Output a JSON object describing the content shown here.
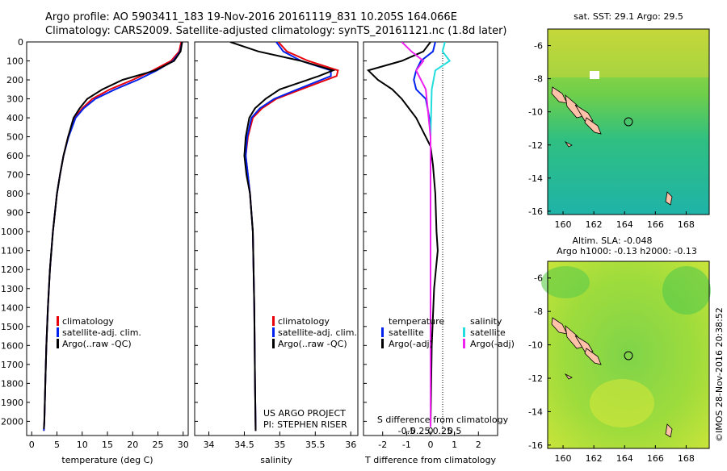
{
  "header": {
    "title_line1": "Argo profile: AO 5903411_183 19-Nov-2016 20161119_831 10.205S 164.066E",
    "title_line2": "Climatology: CARS2009. Satellite-adjusted climatology: synTS_20161121.nc (1.8d later)"
  },
  "colors": {
    "climatology": "#e8000b",
    "satellite_adj": "#0022ee",
    "argo": "#000000",
    "satellite_salinity": "#22dddd",
    "argo_salinity_adj": "#ee22ee"
  },
  "chart_data": [
    {
      "type": "line",
      "panel": "temperature",
      "xlabel": "temperature (deg C)",
      "ylim": [
        2050,
        0
      ],
      "xlim": [
        -1,
        31
      ],
      "xticks": [
        0,
        5,
        10,
        15,
        20,
        25,
        30
      ],
      "yticks": [
        0,
        100,
        200,
        300,
        400,
        500,
        600,
        700,
        800,
        900,
        1000,
        1100,
        1200,
        1300,
        1400,
        1500,
        1600,
        1700,
        1800,
        1900,
        2000
      ],
      "legend": [
        "climatology",
        "satellite-adj. clim.",
        "Argo(..raw -QC)"
      ],
      "series": [
        {
          "name": "climatology",
          "x": [
            29.6,
            29.2,
            27.6,
            24,
            20,
            15.5,
            12,
            10,
            8.5,
            7.2,
            6.3,
            5.6,
            5,
            4.2,
            3.6,
            3.2,
            2.9,
            2.7,
            2.5,
            2.4
          ],
          "y": [
            0,
            50,
            100,
            150,
            200,
            250,
            300,
            350,
            400,
            500,
            600,
            700,
            800,
            1000,
            1200,
            1400,
            1600,
            1800,
            2000,
            2050
          ]
        },
        {
          "name": "satellite-adj. clim.",
          "x": [
            29.8,
            29.4,
            28,
            24.8,
            21,
            16.5,
            12.6,
            10.3,
            8.7,
            7.3,
            6.3,
            5.6,
            5,
            4.2,
            3.6,
            3.2,
            2.9,
            2.7,
            2.5,
            2.4
          ],
          "y": [
            0,
            50,
            100,
            150,
            200,
            250,
            300,
            350,
            400,
            500,
            600,
            700,
            800,
            1000,
            1200,
            1400,
            1600,
            1800,
            2000,
            2050
          ]
        },
        {
          "name": "Argo(..raw -QC)",
          "x": [
            29.8,
            29.5,
            28.2,
            24.5,
            18,
            14,
            11,
            9.5,
            8.3,
            7.2,
            6.3,
            5.6,
            5,
            4.2,
            3.6,
            3.2,
            2.9,
            2.7,
            2.5,
            2.4
          ],
          "y": [
            0,
            50,
            100,
            150,
            200,
            250,
            300,
            350,
            400,
            500,
            600,
            700,
            800,
            1000,
            1200,
            1400,
            1600,
            1800,
            2000,
            2040
          ]
        }
      ]
    },
    {
      "type": "line",
      "panel": "salinity",
      "xlabel": "salinity",
      "ylim": [
        2050,
        0
      ],
      "xlim": [
        33.8,
        36.1
      ],
      "xticks": [
        34,
        34.5,
        35,
        35.5,
        36
      ],
      "legend": [
        "climatology",
        "satellite-adj. clim.",
        "Argo(..raw -QC)"
      ],
      "annotation": [
        "US ARGO PROJECT",
        "PI: STEPHEN RISER"
      ],
      "series": [
        {
          "name": "climatology",
          "x": [
            34.98,
            35.1,
            35.4,
            35.82,
            35.8,
            35.3,
            34.95,
            34.75,
            34.62,
            34.55,
            34.52,
            34.55,
            34.58,
            34.62,
            34.64,
            34.65,
            34.66
          ],
          "y": [
            0,
            50,
            100,
            150,
            180,
            250,
            300,
            350,
            400,
            500,
            600,
            700,
            800,
            1000,
            1400,
            1800,
            2050
          ]
        },
        {
          "name": "satellite-adj. clim.",
          "x": [
            34.95,
            35.05,
            35.3,
            35.72,
            35.72,
            35.25,
            34.92,
            34.72,
            34.6,
            34.54,
            34.52,
            34.55,
            34.58,
            34.62,
            34.64,
            34.65,
            34.66
          ],
          "y": [
            0,
            50,
            100,
            150,
            180,
            250,
            300,
            350,
            400,
            500,
            600,
            700,
            800,
            1000,
            1400,
            1800,
            2050
          ]
        },
        {
          "name": "Argo(..raw -QC)",
          "x": [
            34.3,
            34.7,
            35.3,
            35.75,
            35.55,
            35.0,
            34.8,
            34.65,
            34.57,
            34.52,
            34.5,
            34.53,
            34.58,
            34.62,
            34.64,
            34.65,
            34.66
          ],
          "y": [
            0,
            50,
            100,
            150,
            180,
            250,
            300,
            350,
            400,
            500,
            600,
            700,
            800,
            1000,
            1400,
            1800,
            2050
          ]
        }
      ]
    },
    {
      "type": "line",
      "panel": "difference",
      "xlabel": "T difference from climatology",
      "x2label": "S difference from climatology",
      "ylim": [
        2050,
        0
      ],
      "xlim": [
        -2.8,
        2.8
      ],
      "xticks": [
        -2,
        -1,
        0,
        1,
        2
      ],
      "x2ticks": [
        "-0.5",
        "-0.25",
        "0",
        "0.25",
        "0.5"
      ],
      "legend": [
        "temperature",
        "satellite",
        "Argo(-adj)",
        "salinity",
        "satellite",
        "Argo(-adj)"
      ],
      "series": [
        {
          "name": "temperature satellite",
          "x": [
            0.2,
            0.1,
            -0.4,
            -0.6,
            -0.7,
            -0.6,
            -0.2,
            -0.05,
            0,
            0,
            0,
            0
          ],
          "y": [
            0,
            50,
            100,
            150,
            200,
            250,
            300,
            400,
            500,
            1000,
            1500,
            2030
          ]
        },
        {
          "name": "temperature Argo(-adj)",
          "x": [
            0,
            -0.3,
            -1.2,
            -2.6,
            -2.2,
            -1.6,
            -1.2,
            -0.6,
            0,
            0.1,
            0.2,
            0.25,
            0.3,
            0.15,
            0.05,
            0
          ],
          "y": [
            0,
            50,
            100,
            150,
            200,
            250,
            300,
            400,
            550,
            650,
            800,
            1000,
            1100,
            1300,
            1600,
            2030
          ]
        },
        {
          "name": "salinity satellite",
          "x": [
            0.6,
            0.5,
            0.8,
            0.2,
            0.05,
            0,
            0,
            0,
            0
          ],
          "y": [
            0,
            50,
            100,
            150,
            250,
            500,
            1000,
            1500,
            2030
          ]
        },
        {
          "name": "salinity Argo(-adj)",
          "x": [
            -1.2,
            -0.8,
            -0.3,
            -0.6,
            -0.2,
            0,
            0,
            0
          ],
          "y": [
            0,
            50,
            100,
            150,
            250,
            500,
            1000,
            2030
          ]
        }
      ]
    },
    {
      "type": "heatmap",
      "panel": "map_sst",
      "title": "sat. SST: 29.1  Argo: 29.5",
      "xticks": [
        160,
        162,
        164,
        166,
        168
      ],
      "yticks": [
        -6,
        -8,
        -10,
        -12,
        -14,
        -16
      ],
      "marker": {
        "lon": 164.066,
        "lat": -10.205
      }
    },
    {
      "type": "heatmap",
      "panel": "map_sla",
      "title_line1": "Altim. SLA: -0.048",
      "title_line2": "Argo h1000: -0.13 h2000: -0.13",
      "xticks": [
        160,
        162,
        164,
        166,
        168
      ],
      "yticks": [
        -6,
        -8,
        -10,
        -12,
        -14,
        -16
      ],
      "marker": {
        "lon": 164.066,
        "lat": -10.205
      }
    }
  ],
  "footer": {
    "stamp": "©IMOS 28-Nov-2016 20:38:52"
  }
}
